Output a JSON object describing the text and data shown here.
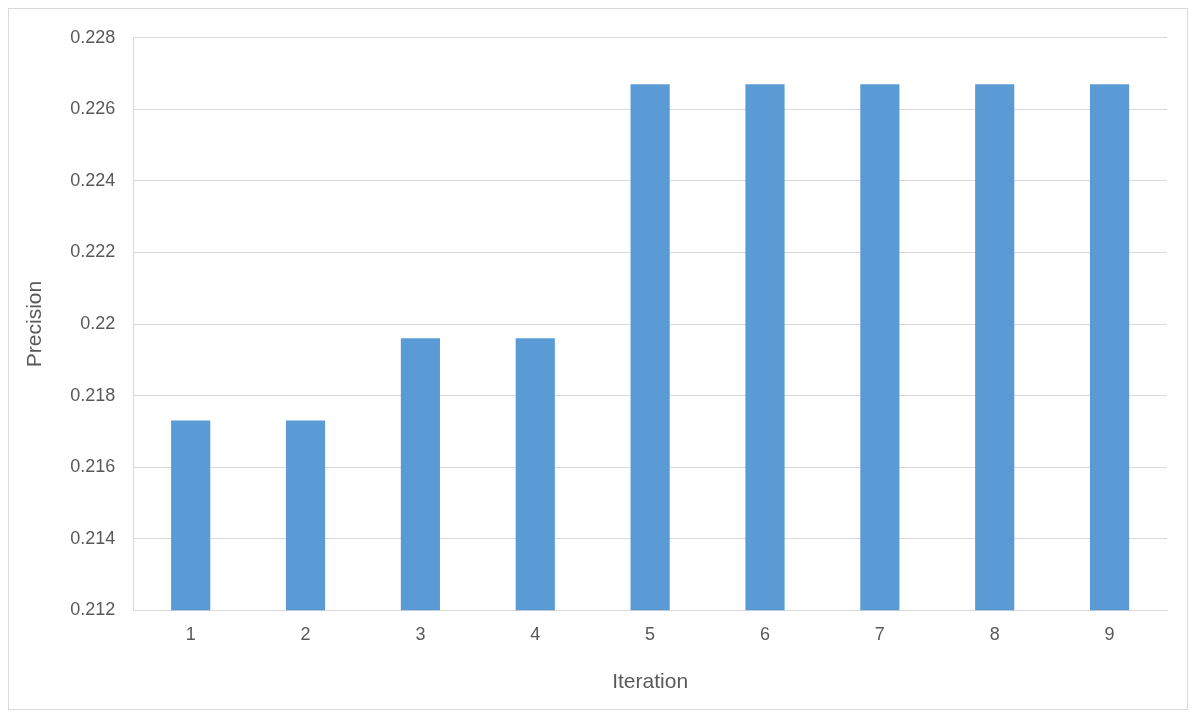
{
  "chart_data": {
    "type": "bar",
    "xlabel": "Iteration",
    "ylabel": "Precision",
    "categories": [
      "1",
      "2",
      "3",
      "4",
      "5",
      "6",
      "7",
      "8",
      "9"
    ],
    "series": [
      {
        "color": "#5b9bd5",
        "values": [
          0.2173,
          0.2173,
          0.2196,
          0.2196,
          0.2267,
          0.2267,
          0.2267,
          0.2267,
          0.2267
        ]
      }
    ],
    "ylim": [
      0.212,
      0.228
    ],
    "yticks": [
      0.212,
      0.214,
      0.216,
      0.218,
      0.22,
      0.222,
      0.224,
      0.226,
      0.228
    ],
    "grid": "y",
    "legend": false
  }
}
